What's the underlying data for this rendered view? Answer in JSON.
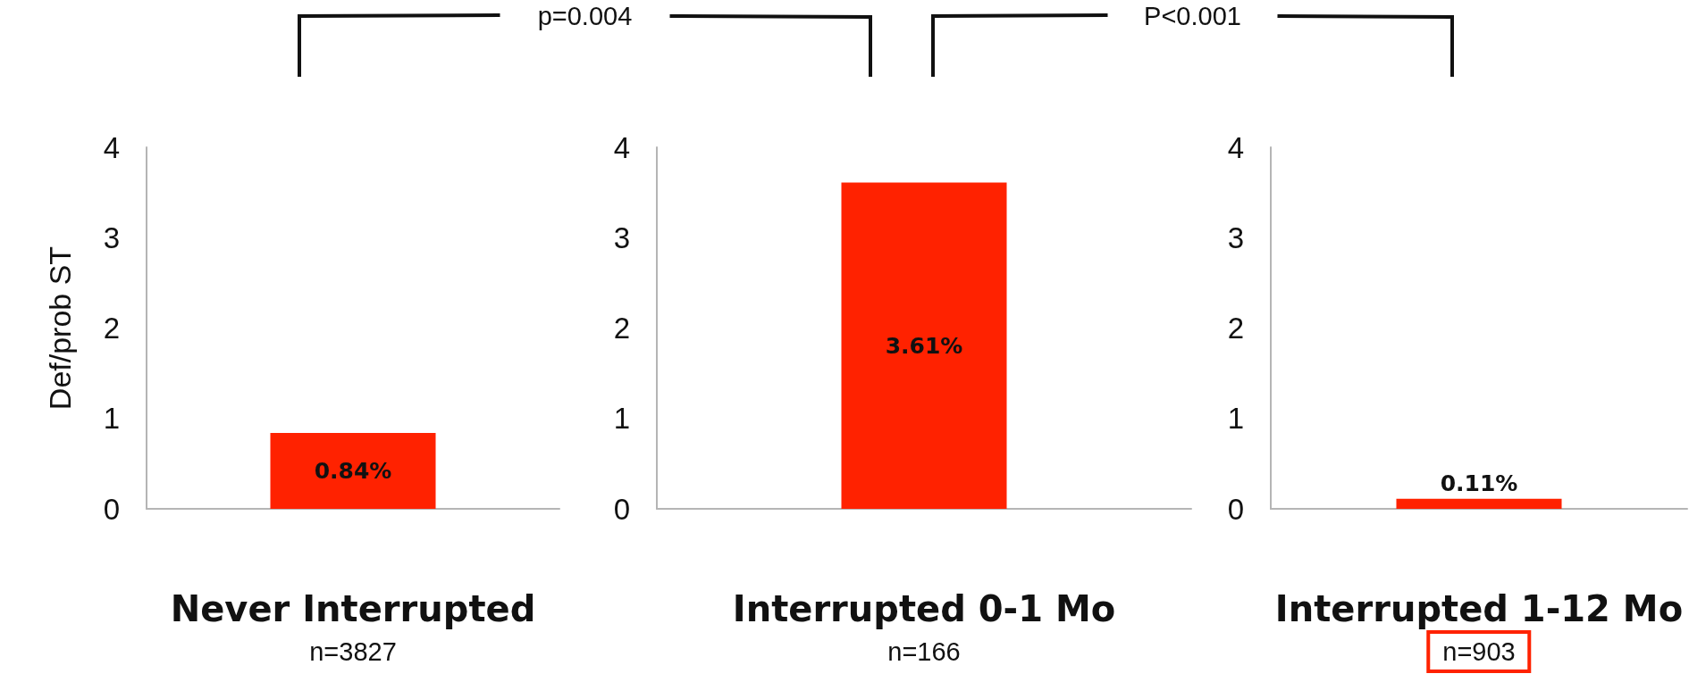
{
  "chart_data": [
    {
      "type": "bar",
      "categories": [
        null
      ],
      "values": [
        0.84
      ],
      "value_labels": [
        "0.84%"
      ],
      "color": "#ff2200",
      "ylim": [
        0,
        4
      ],
      "yticks": [
        0,
        1,
        2,
        3,
        4
      ],
      "grid": false,
      "ylabel": "Def/prob ST",
      "xlabel": "Never Interrupted",
      "annotations": [
        "n=3827",
        "p=0.004"
      ]
    },
    {
      "type": "bar",
      "categories": [
        null
      ],
      "values": [
        3.61
      ],
      "value_labels": [
        "3.61%"
      ],
      "color": "#ff2200",
      "ylim": [
        0,
        4
      ],
      "yticks": [
        0,
        1,
        2,
        3,
        4
      ],
      "grid": false,
      "xlabel": "Interrupted 0-1 Mo",
      "annotations": [
        "n=166",
        "P<0.001"
      ]
    },
    {
      "type": "bar",
      "categories": [
        null
      ],
      "values": [
        0.11
      ],
      "value_labels": [
        "0.11%"
      ],
      "color": "#ff2200",
      "ylim": [
        0,
        4
      ],
      "yticks": [
        0,
        1,
        2,
        3,
        4
      ],
      "grid": false,
      "xlabel": "Interrupted 1-12 Mo",
      "annotations": [
        "n=903"
      ]
    }
  ]
}
